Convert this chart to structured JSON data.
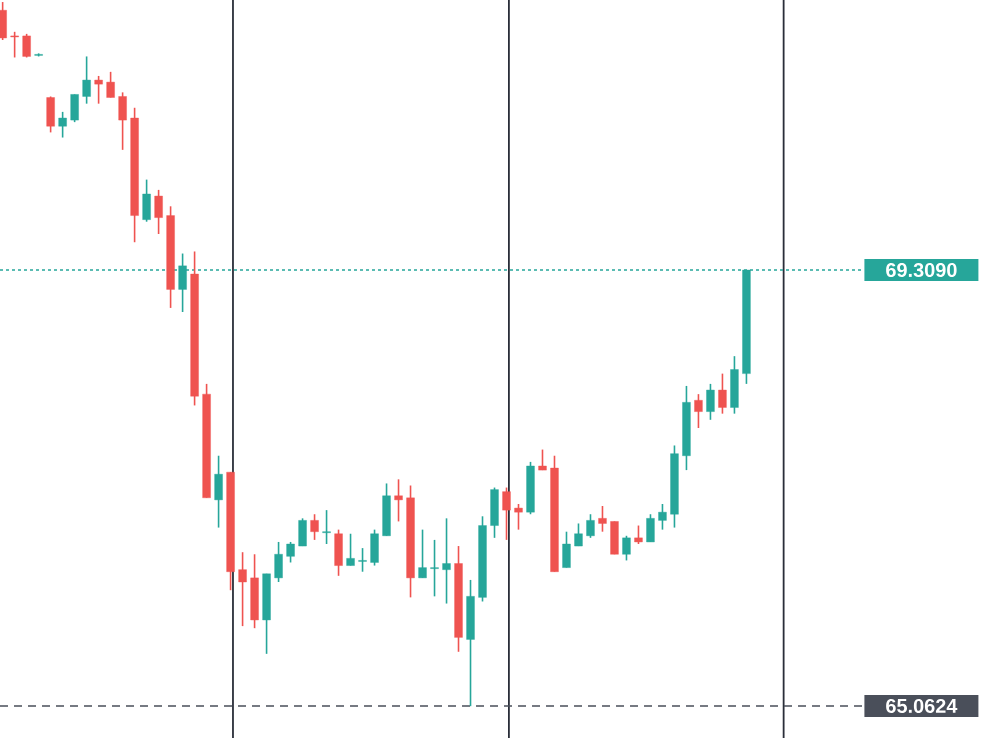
{
  "chart_data": {
    "type": "candlestick",
    "categories": [
      null,
      null,
      null,
      null,
      null,
      null,
      null,
      null,
      null,
      null,
      null,
      null,
      null,
      null,
      null,
      null,
      null,
      null,
      null,
      null,
      null,
      null,
      null,
      null,
      null,
      null,
      null,
      null,
      null,
      null,
      null,
      null,
      null,
      null,
      null,
      null,
      null,
      null,
      null,
      null,
      null,
      null,
      null,
      null,
      null,
      null,
      null,
      null,
      null,
      null,
      null,
      null,
      null,
      null,
      null,
      null,
      null,
      null,
      null,
      null,
      null,
      null,
      null
    ],
    "ohlc": [
      [
        71.84,
        71.92,
        71.55,
        71.57
      ],
      [
        71.59,
        71.63,
        71.38,
        71.58
      ],
      [
        71.59,
        71.61,
        71.38,
        71.39
      ],
      [
        71.4,
        71.42,
        71.39,
        71.41
      ],
      [
        70.99,
        71.0,
        70.65,
        70.71
      ],
      [
        70.71,
        70.85,
        70.6,
        70.79
      ],
      [
        70.77,
        71.02,
        70.75,
        71.02
      ],
      [
        71.0,
        71.39,
        70.93,
        71.16
      ],
      [
        71.16,
        71.2,
        70.93,
        71.12
      ],
      [
        71.14,
        71.24,
        70.99,
        70.99
      ],
      [
        71.0,
        71.04,
        70.48,
        70.77
      ],
      [
        70.79,
        70.89,
        69.58,
        69.84
      ],
      [
        69.8,
        70.19,
        69.78,
        70.05
      ],
      [
        70.03,
        70.09,
        69.66,
        69.82
      ],
      [
        69.84,
        69.93,
        68.94,
        69.12
      ],
      [
        69.12,
        69.47,
        68.9,
        69.35
      ],
      [
        69.27,
        69.49,
        67.99,
        68.08
      ],
      [
        68.1,
        68.2,
        67.09,
        67.09
      ],
      [
        67.07,
        67.5,
        66.8,
        67.32
      ],
      [
        67.34,
        67.34,
        66.19,
        66.37
      ],
      [
        66.39,
        66.56,
        65.84,
        66.27
      ],
      [
        66.31,
        66.54,
        65.82,
        65.9
      ],
      [
        65.9,
        66.35,
        65.57,
        66.35
      ],
      [
        66.31,
        66.66,
        66.27,
        66.54
      ],
      [
        66.52,
        66.66,
        66.46,
        66.64
      ],
      [
        66.62,
        66.89,
        66.62,
        66.87
      ],
      [
        66.87,
        66.93,
        66.68,
        66.76
      ],
      [
        66.75,
        66.97,
        66.64,
        66.76
      ],
      [
        66.74,
        66.78,
        66.33,
        66.43
      ],
      [
        66.43,
        66.74,
        66.43,
        66.5
      ],
      [
        66.47,
        66.6,
        66.37,
        66.48
      ],
      [
        66.46,
        66.78,
        66.43,
        66.74
      ],
      [
        66.72,
        67.23,
        66.72,
        67.11
      ],
      [
        67.11,
        67.27,
        66.86,
        67.07
      ],
      [
        67.09,
        67.21,
        66.12,
        66.31
      ],
      [
        66.31,
        66.78,
        66.31,
        66.41
      ],
      [
        66.4,
        66.68,
        66.13,
        66.41
      ],
      [
        66.39,
        66.89,
        66.06,
        66.45
      ],
      [
        66.45,
        66.62,
        65.59,
        65.73
      ],
      [
        65.71,
        66.29,
        65.06,
        66.13
      ],
      [
        66.12,
        66.91,
        66.08,
        66.82
      ],
      [
        66.82,
        67.19,
        66.7,
        67.17
      ],
      [
        67.15,
        67.19,
        66.68,
        66.97
      ],
      [
        66.99,
        67.03,
        66.78,
        66.95
      ],
      [
        66.95,
        67.44,
        66.93,
        67.4
      ],
      [
        67.4,
        67.56,
        67.36,
        67.36
      ],
      [
        67.38,
        67.5,
        66.37,
        66.37
      ],
      [
        66.41,
        66.76,
        66.41,
        66.64
      ],
      [
        66.62,
        66.84,
        66.62,
        66.74
      ],
      [
        66.72,
        66.93,
        66.7,
        66.87
      ],
      [
        66.89,
        67.01,
        66.76,
        66.84
      ],
      [
        66.86,
        66.86,
        66.54,
        66.54
      ],
      [
        66.54,
        66.72,
        66.48,
        66.7
      ],
      [
        66.7,
        66.82,
        66.64,
        66.66
      ],
      [
        66.66,
        66.93,
        66.66,
        66.89
      ],
      [
        66.87,
        67.03,
        66.78,
        66.95
      ],
      [
        66.93,
        67.6,
        66.8,
        67.52
      ],
      [
        67.5,
        68.18,
        67.36,
        68.02
      ],
      [
        68.04,
        68.1,
        67.77,
        67.93
      ],
      [
        67.93,
        68.2,
        67.85,
        68.14
      ],
      [
        68.14,
        68.3,
        67.91,
        67.97
      ],
      [
        67.97,
        68.47,
        67.91,
        68.34
      ],
      [
        68.3,
        69.31,
        68.2,
        69.309
      ]
    ],
    "colors": [
      "#ef5350",
      "#ef5350",
      "#ef5350",
      "#26a69a",
      "#ef5350",
      "#26a69a",
      "#26a69a",
      "#26a69a",
      "#ef5350",
      "#ef5350",
      "#ef5350",
      "#ef5350",
      "#26a69a",
      "#ef5350",
      "#ef5350",
      "#26a69a",
      "#ef5350",
      "#ef5350",
      "#26a69a",
      "#ef5350",
      "#ef5350",
      "#ef5350",
      "#26a69a",
      "#26a69a",
      "#26a69a",
      "#26a69a",
      "#ef5350",
      "#26a69a",
      "#ef5350",
      "#26a69a",
      "#26a69a",
      "#26a69a",
      "#26a69a",
      "#ef5350",
      "#ef5350",
      "#26a69a",
      "#26a69a",
      "#26a69a",
      "#ef5350",
      "#26a69a",
      "#26a69a",
      "#26a69a",
      "#ef5350",
      "#ef5350",
      "#26a69a",
      "#ef5350",
      "#ef5350",
      "#26a69a",
      "#26a69a",
      "#26a69a",
      "#ef5350",
      "#ef5350",
      "#26a69a",
      "#ef5350",
      "#26a69a",
      "#26a69a",
      "#26a69a",
      "#26a69a",
      "#ef5350",
      "#26a69a",
      "#ef5350",
      "#26a69a",
      "#26a69a"
    ],
    "ylim": [
      64.75,
      71.94
    ],
    "tick_labels": false,
    "ref_lines": [
      {
        "axis": "y",
        "value": 69.309,
        "label": "69.3090",
        "color": "#26a69a",
        "line_style": "dotted"
      },
      {
        "axis": "y",
        "value": 65.0624,
        "label": "65.0624",
        "color": "#4a4f5a",
        "line_style": "dashed"
      }
    ]
  }
}
